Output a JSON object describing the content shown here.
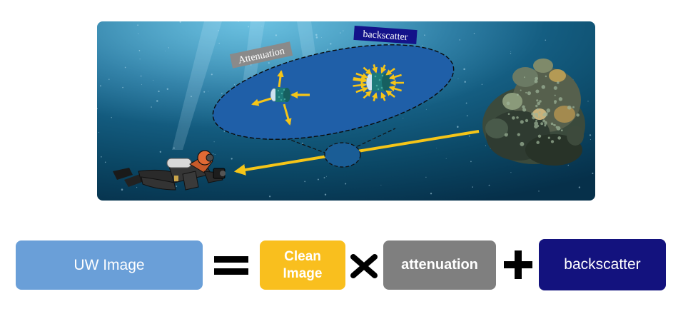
{
  "scene": {
    "labels": {
      "attenuation": "Attenuation",
      "backscatter": "backscatter"
    },
    "colors": {
      "water_deep": "#06354d",
      "water_light": "#2f8fb8",
      "magnifier_fill": "#1f5fa8",
      "light_ray": "#f5c518",
      "attenuation_tag": "#8a8a8a",
      "backscatter_tag": "#13128a"
    },
    "icons": [
      "diver-icon",
      "coral-reef-icon",
      "particle-icon",
      "magnifier-ellipse"
    ]
  },
  "equation": {
    "uw_image": "UW Image",
    "clean_image_line1": "Clean",
    "clean_image_line2": "Image",
    "attenuation": "attenuation",
    "backscatter": "backscatter",
    "colors": {
      "uw_image": "#6a9fd8",
      "clean_image": "#f9bf1e",
      "attenuation": "#7f7f7f",
      "backscatter": "#13127e"
    }
  }
}
